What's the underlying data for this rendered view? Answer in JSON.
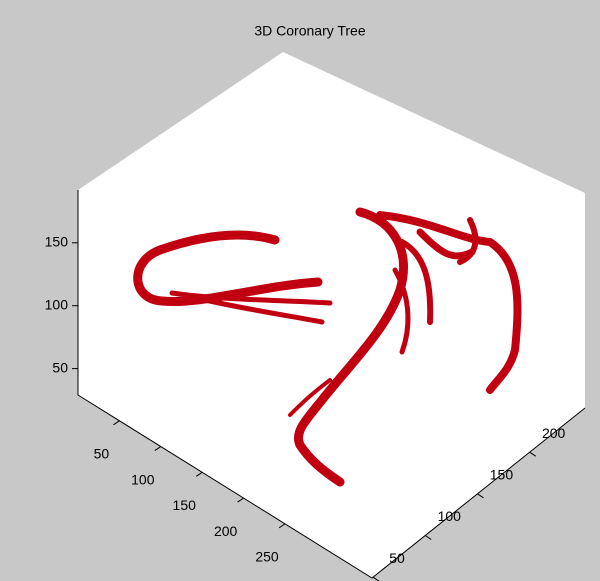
{
  "chart_data": {
    "type": "surface3d",
    "title": "3D Coronary Tree",
    "color": "#c00010",
    "xlim": [
      0,
      355
    ],
    "xticks": [
      50,
      100,
      150,
      200,
      250
    ],
    "ylim": [
      49,
      253
    ],
    "yticks": [
      50,
      100,
      150,
      200
    ],
    "zlim": [
      29,
      192
    ],
    "zticks": [
      50,
      100,
      150
    ]
  }
}
